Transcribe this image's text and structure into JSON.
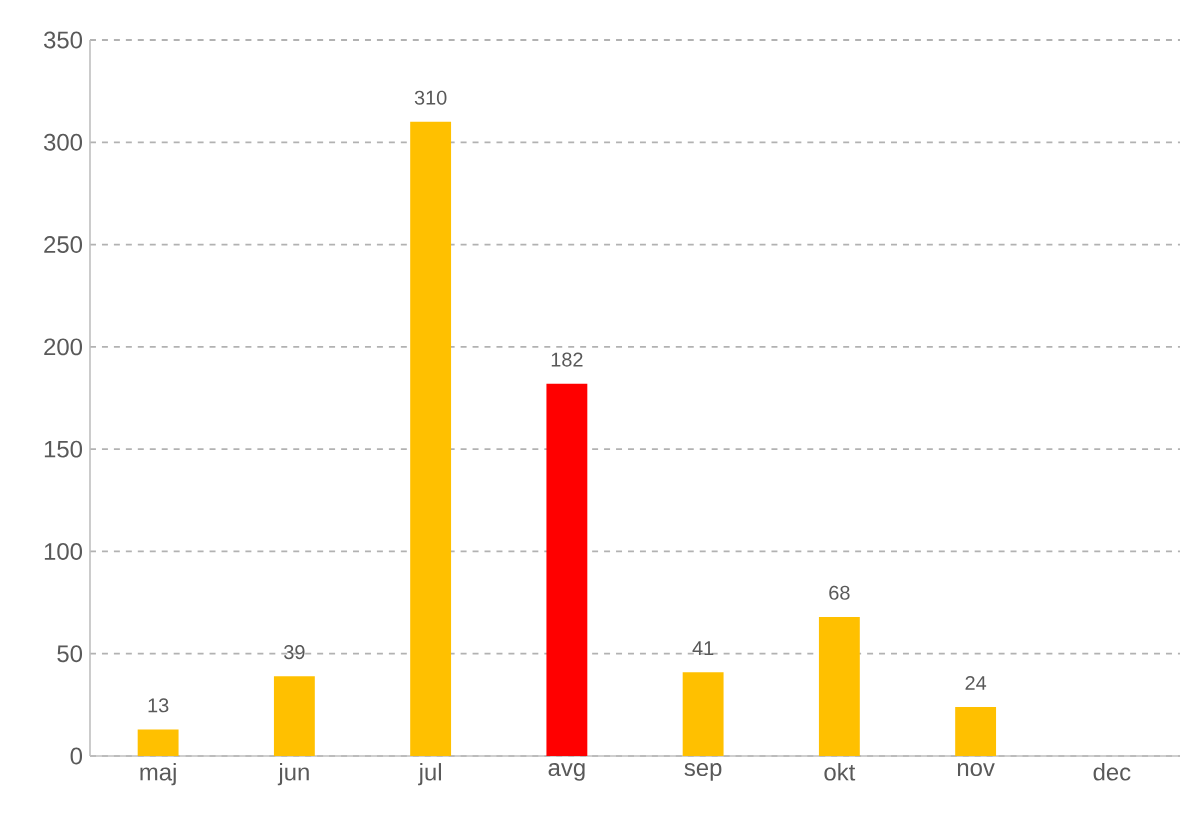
{
  "chart_data": {
    "type": "bar",
    "categories": [
      "maj",
      "jun",
      "jul",
      "avg",
      "sep",
      "okt",
      "nov",
      "dec"
    ],
    "values": [
      13,
      39,
      310,
      182,
      41,
      68,
      24,
      null
    ],
    "colors": [
      "#ffc000",
      "#ffc000",
      "#ffc000",
      "#ff0000",
      "#ffc000",
      "#ffc000",
      "#ffc000",
      "#ffc000"
    ],
    "ylim": [
      0,
      350
    ],
    "yticks": [
      0,
      50,
      100,
      150,
      200,
      250,
      300,
      350
    ],
    "grid": "y",
    "data_labels": true
  }
}
